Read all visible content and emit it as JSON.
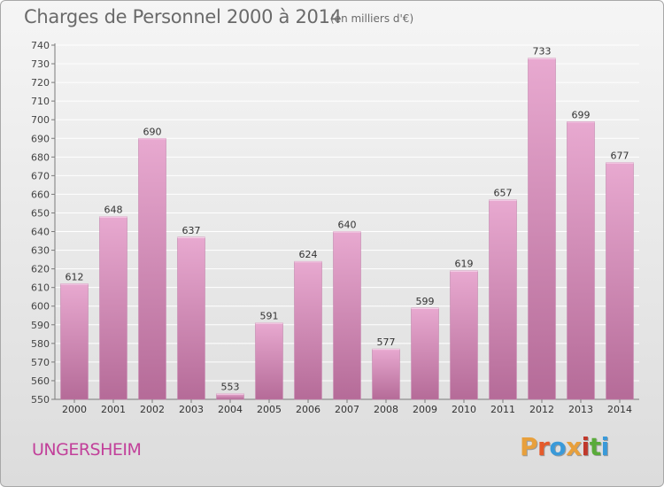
{
  "header": {
    "title": "Charges de Personnel 2000 à 2014",
    "subtitle": "(en milliers d'€)"
  },
  "footer": {
    "city": "UNGERSHEIM",
    "logo_text": "Proxiti",
    "logo_colors": [
      "#e8a03c",
      "#e55b2b",
      "#3a9ad9",
      "#e8a03c",
      "#c0382b",
      "#5aab3a",
      "#3a9ad9"
    ]
  },
  "colors": {
    "bar_light": "#e8a9d0",
    "bar_dark": "#b56b98",
    "accent": "#c2409a"
  },
  "chart_data": {
    "type": "bar",
    "title": "Charges de Personnel 2000 à 2014",
    "subtitle": "(en milliers d'€)",
    "categories": [
      "2000",
      "2001",
      "2002",
      "2003",
      "2004",
      "2005",
      "2006",
      "2007",
      "2008",
      "2009",
      "2010",
      "2011",
      "2012",
      "2013",
      "2014"
    ],
    "values": [
      612,
      648,
      690,
      637,
      553,
      591,
      624,
      640,
      577,
      599,
      619,
      657,
      733,
      699,
      677
    ],
    "ylim": [
      550,
      740
    ],
    "yticks": [
      550,
      560,
      570,
      580,
      590,
      600,
      610,
      620,
      630,
      640,
      650,
      660,
      670,
      680,
      690,
      700,
      710,
      720,
      730,
      740
    ],
    "grid": true,
    "legend": "none"
  }
}
